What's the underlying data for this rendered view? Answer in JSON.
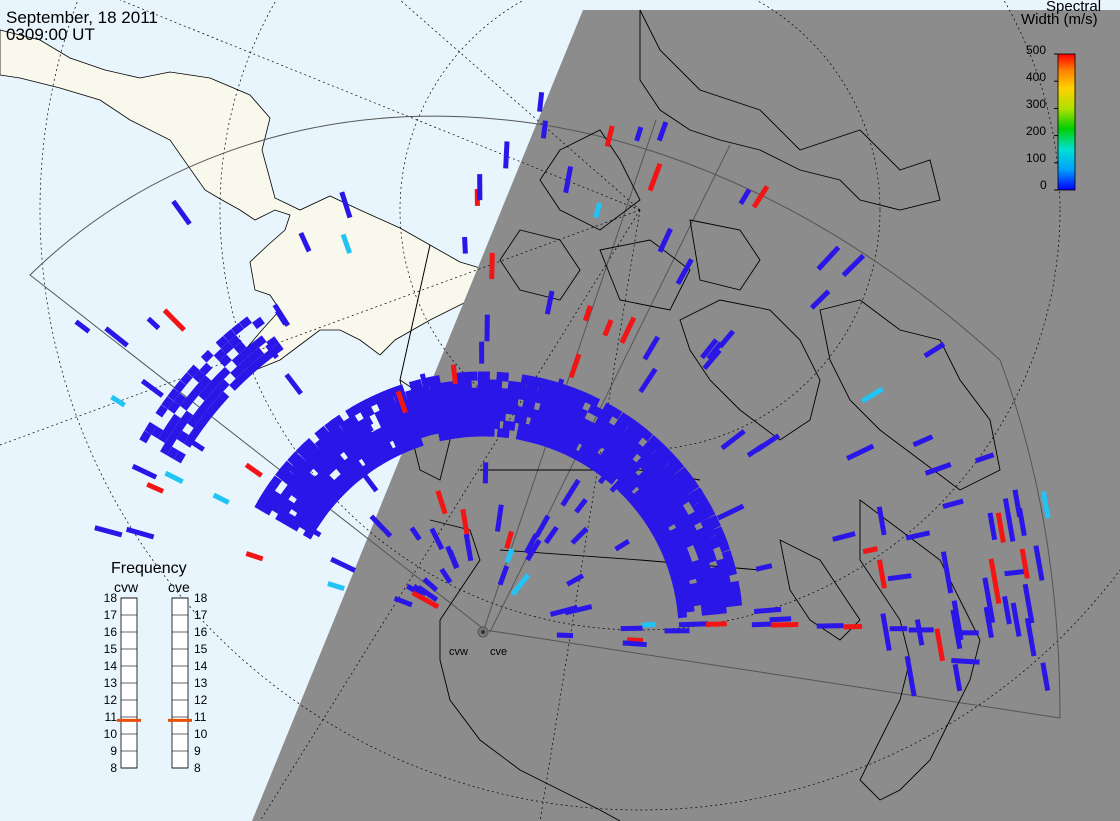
{
  "header": {
    "date": "September, 18 2011",
    "time": "0309:00 UT"
  },
  "colorbar": {
    "title_line1": "Spectral",
    "title_line2": "Width (m/s)",
    "ticks": [
      "500",
      "400",
      "300",
      "200",
      "100",
      "0"
    ]
  },
  "frequency": {
    "title": "Frequency",
    "radars": [
      {
        "name": "cvw",
        "value": 10.8
      },
      {
        "name": "cve",
        "value": 10.8
      }
    ],
    "ticks": [
      "18",
      "17",
      "16",
      "15",
      "14",
      "13",
      "12",
      "11",
      "10",
      "9",
      "8"
    ],
    "marker_color": "#e8500a"
  },
  "radar_labels": {
    "west": "cvw",
    "east": "cve"
  },
  "colors": {
    "ocean": "#e8f5fd",
    "land": "#f8f8ec",
    "night_shade": "#8c8c8c",
    "low_width": "#2b16e8",
    "high_width": "#f21515",
    "mid_width": "#22c3f5"
  }
}
